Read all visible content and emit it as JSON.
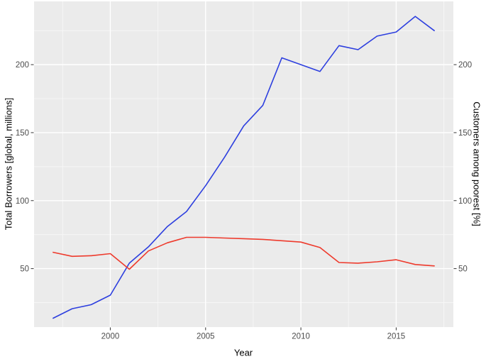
{
  "chart_data": {
    "type": "line",
    "title": "",
    "xlabel": "Year",
    "ylabel_left": "Total Borrowers [global, millions]",
    "ylabel_right": "Customers among poorest [%]",
    "x": [
      1997,
      1998,
      1999,
      2000,
      2001,
      2002,
      2003,
      2004,
      2005,
      2006,
      2007,
      2008,
      2009,
      2010,
      2011,
      2012,
      2013,
      2014,
      2015,
      2016,
      2017
    ],
    "series": [
      {
        "name": "total-borrowers",
        "axis": "left",
        "color": "#2d3fdf",
        "values": [
          13.5,
          20.5,
          23.5,
          30.5,
          54,
          66,
          81,
          92,
          111,
          132,
          155,
          170,
          205,
          200,
          195,
          214,
          211,
          221,
          224,
          235.5,
          225
        ]
      },
      {
        "name": "customers-among-poorest",
        "axis": "right",
        "color": "#ee3a2c",
        "values": [
          62,
          59,
          59.5,
          61,
          49.5,
          63,
          69,
          73,
          73,
          72.5,
          72,
          71.5,
          70.5,
          69.5,
          65.5,
          54.5,
          54,
          55,
          56.5,
          53,
          52
        ]
      }
    ],
    "x_ticks": [
      2000,
      2005,
      2010,
      2015
    ],
    "x_minor_ticks": [
      1997.5,
      2002.5,
      2007.5,
      2012.5,
      2017.5
    ],
    "y_ticks_left": [
      50,
      100,
      150,
      200
    ],
    "y_ticks_right": [
      50,
      100,
      150,
      200
    ],
    "y_minor_ticks": [
      25,
      75,
      125,
      175,
      225
    ],
    "xlim": [
      1996,
      2018
    ],
    "ylim": [
      7,
      246.5
    ],
    "grid": true,
    "legend": "none",
    "colors": {
      "panel_background": "#ebebeb",
      "major_gridline": "#ffffff",
      "minor_gridline": "#f6f6f6",
      "tick_mark": "#333333",
      "tick_label": "#4d4d4d",
      "axis_title": "#000000",
      "outer_background": "#ffffff"
    }
  }
}
